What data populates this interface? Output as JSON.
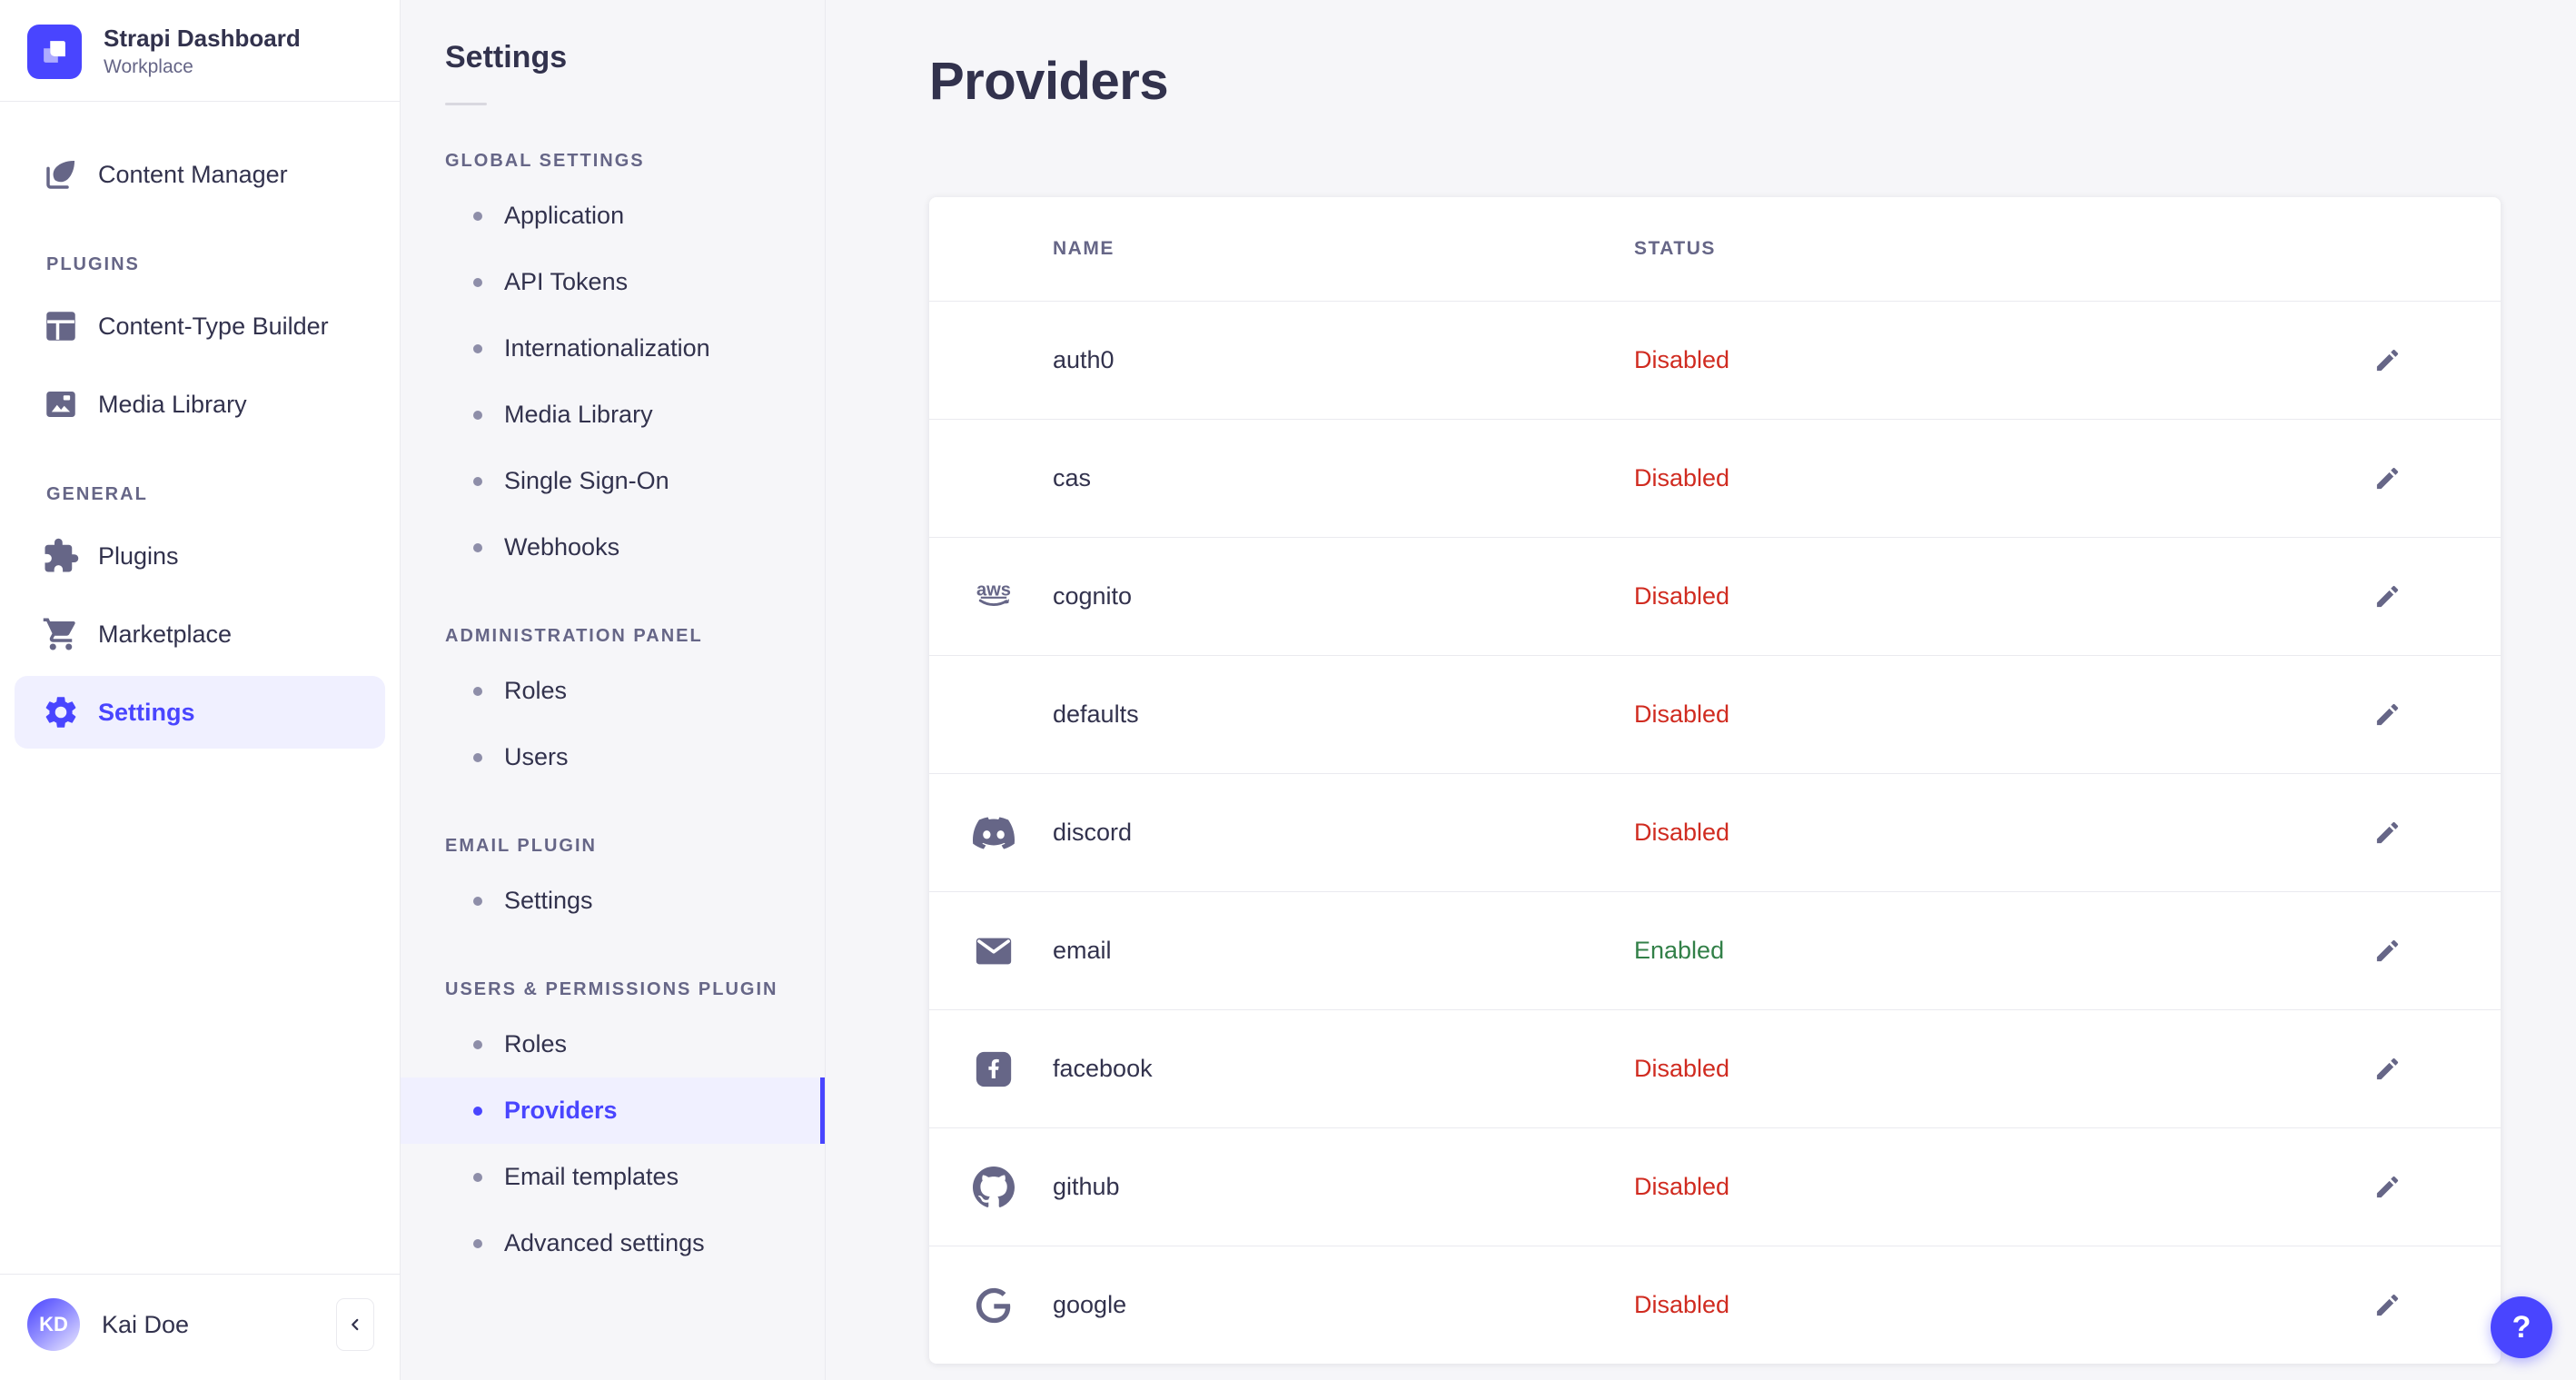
{
  "app": {
    "title": "Strapi Dashboard",
    "workspace": "Workplace"
  },
  "colors": {
    "primary": "#4945ff",
    "primary_bg": "#f0f0ff",
    "success": "#328048",
    "danger": "#d02b20"
  },
  "sidebar": {
    "groups": [
      {
        "label": "",
        "items": [
          {
            "label": "Content Manager",
            "icon": "content-manager-icon",
            "active": false
          }
        ]
      },
      {
        "label": "PLUGINS",
        "items": [
          {
            "label": "Content-Type Builder",
            "icon": "content-type-builder-icon",
            "active": false
          },
          {
            "label": "Media Library",
            "icon": "media-library-icon",
            "active": false
          }
        ]
      },
      {
        "label": "GENERAL",
        "items": [
          {
            "label": "Plugins",
            "icon": "plugins-icon",
            "active": false
          },
          {
            "label": "Marketplace",
            "icon": "marketplace-icon",
            "active": false
          },
          {
            "label": "Settings",
            "icon": "settings-gear-icon",
            "active": true
          }
        ]
      }
    ],
    "user": {
      "name": "Kai Doe",
      "initials": "KD"
    }
  },
  "subnav": {
    "title": "Settings",
    "sections": [
      {
        "label": "GLOBAL SETTINGS",
        "items": [
          {
            "label": "Application",
            "active": false
          },
          {
            "label": "API Tokens",
            "active": false
          },
          {
            "label": "Internationalization",
            "active": false
          },
          {
            "label": "Media Library",
            "active": false
          },
          {
            "label": "Single Sign-On",
            "active": false
          },
          {
            "label": "Webhooks",
            "active": false
          }
        ]
      },
      {
        "label": "ADMINISTRATION PANEL",
        "items": [
          {
            "label": "Roles",
            "active": false
          },
          {
            "label": "Users",
            "active": false
          }
        ]
      },
      {
        "label": "EMAIL PLUGIN",
        "items": [
          {
            "label": "Settings",
            "active": false
          }
        ]
      },
      {
        "label": "USERS & PERMISSIONS PLUGIN",
        "items": [
          {
            "label": "Roles",
            "active": false
          },
          {
            "label": "Providers",
            "active": true
          },
          {
            "label": "Email templates",
            "active": false
          },
          {
            "label": "Advanced settings",
            "active": false
          }
        ]
      }
    ]
  },
  "main": {
    "title": "Providers",
    "table": {
      "columns": [
        "NAME",
        "STATUS"
      ],
      "rows": [
        {
          "name": "auth0",
          "icon": "none",
          "status": "Disabled",
          "state": "danger"
        },
        {
          "name": "cas",
          "icon": "none",
          "status": "Disabled",
          "state": "danger"
        },
        {
          "name": "cognito",
          "icon": "aws-icon",
          "status": "Disabled",
          "state": "danger"
        },
        {
          "name": "defaults",
          "icon": "none",
          "status": "Disabled",
          "state": "danger"
        },
        {
          "name": "discord",
          "icon": "discord-icon",
          "status": "Disabled",
          "state": "danger"
        },
        {
          "name": "email",
          "icon": "email-icon",
          "status": "Enabled",
          "state": "success"
        },
        {
          "name": "facebook",
          "icon": "facebook-icon",
          "status": "Disabled",
          "state": "danger"
        },
        {
          "name": "github",
          "icon": "github-icon",
          "status": "Disabled",
          "state": "danger"
        },
        {
          "name": "google",
          "icon": "google-icon",
          "status": "Disabled",
          "state": "danger"
        }
      ]
    }
  },
  "help": {
    "label": "?"
  }
}
